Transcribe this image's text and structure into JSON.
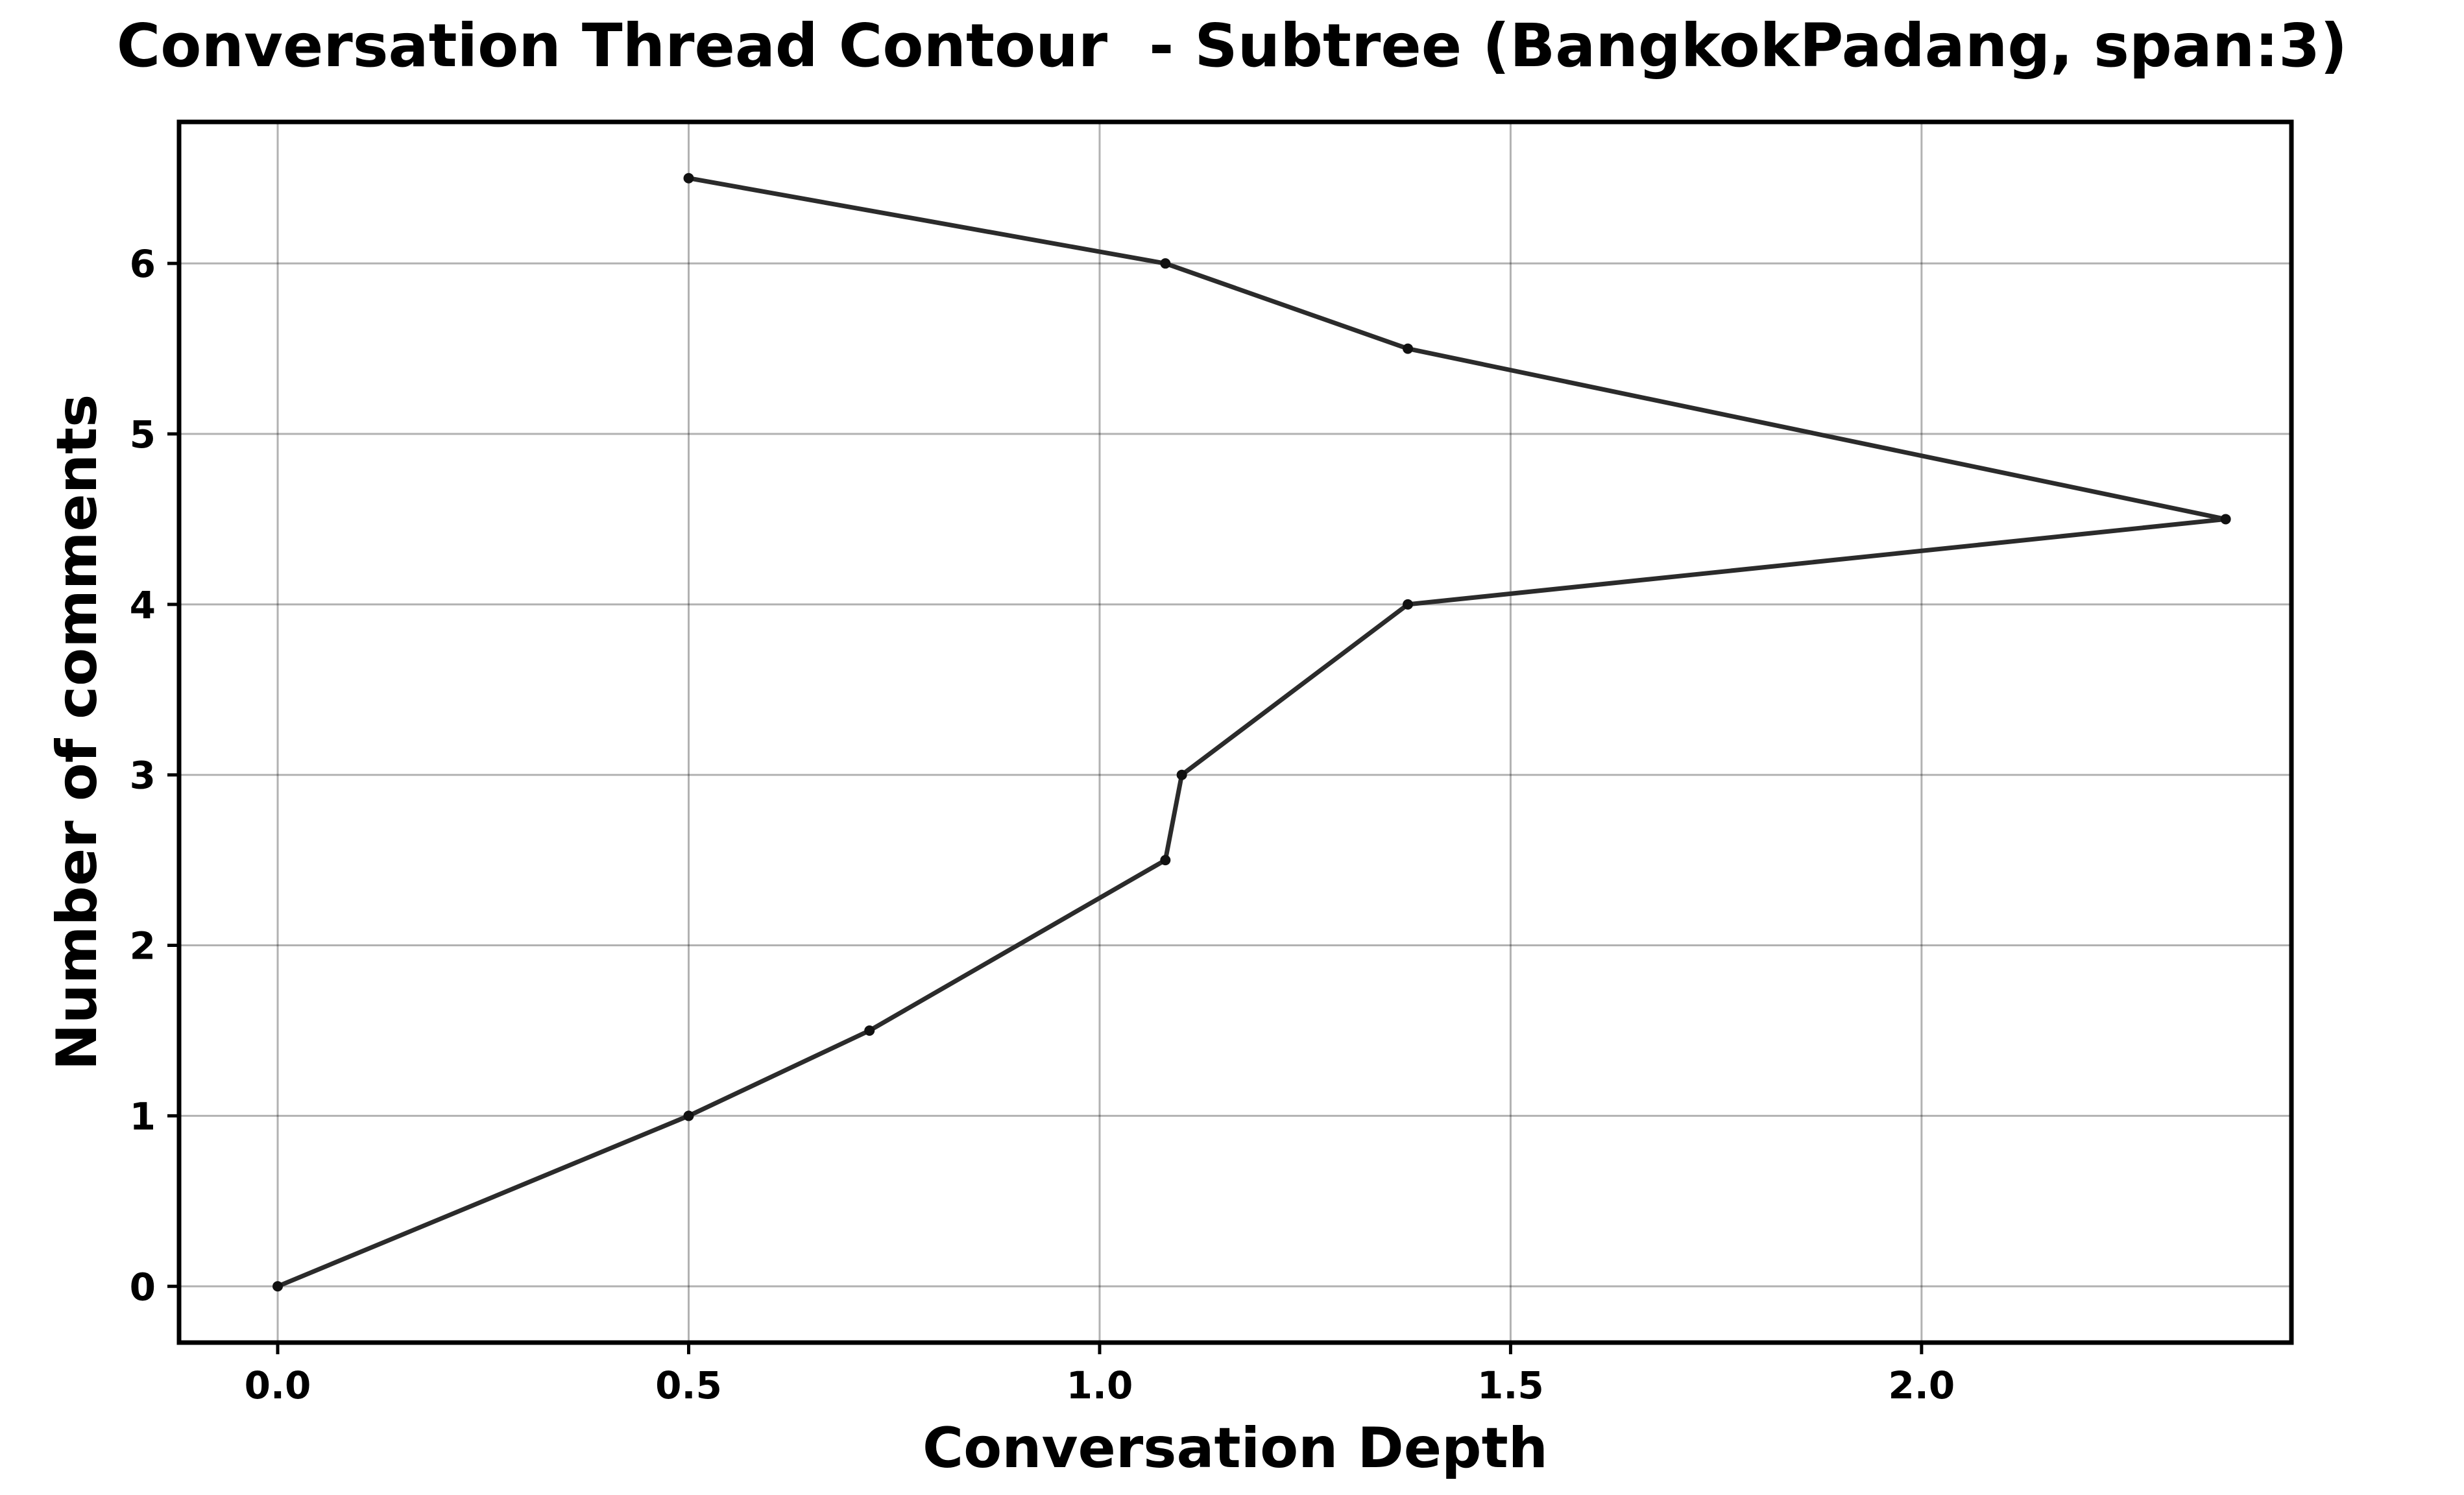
{
  "chart_data": {
    "type": "line",
    "title": "Conversation Thread Contour  - Subtree (BangkokPadang, span:3)",
    "xlabel": "Conversation Depth",
    "ylabel": "Number of comments",
    "xlim": [
      -0.12,
      2.45
    ],
    "ylim": [
      -0.33,
      6.83
    ],
    "xticks": [
      0.0,
      0.5,
      1.0,
      1.5,
      2.0
    ],
    "xtick_labels": [
      "0.0",
      "0.5",
      "1.0",
      "1.5",
      "2.0"
    ],
    "yticks": [
      0,
      1,
      2,
      3,
      4,
      5,
      6
    ],
    "ytick_labels": [
      "0",
      "1",
      "2",
      "3",
      "4",
      "5",
      "6"
    ],
    "grid": true,
    "line_color": "#2b2b2b",
    "series": [
      {
        "name": "contour",
        "x": [
          0.0,
          0.5,
          0.72,
          1.08,
          1.1,
          1.375,
          2.37,
          1.375,
          1.08,
          0.5
        ],
        "y": [
          0,
          1,
          1.5,
          2.5,
          3,
          4,
          4.5,
          5.5,
          6,
          6.5
        ]
      }
    ]
  }
}
